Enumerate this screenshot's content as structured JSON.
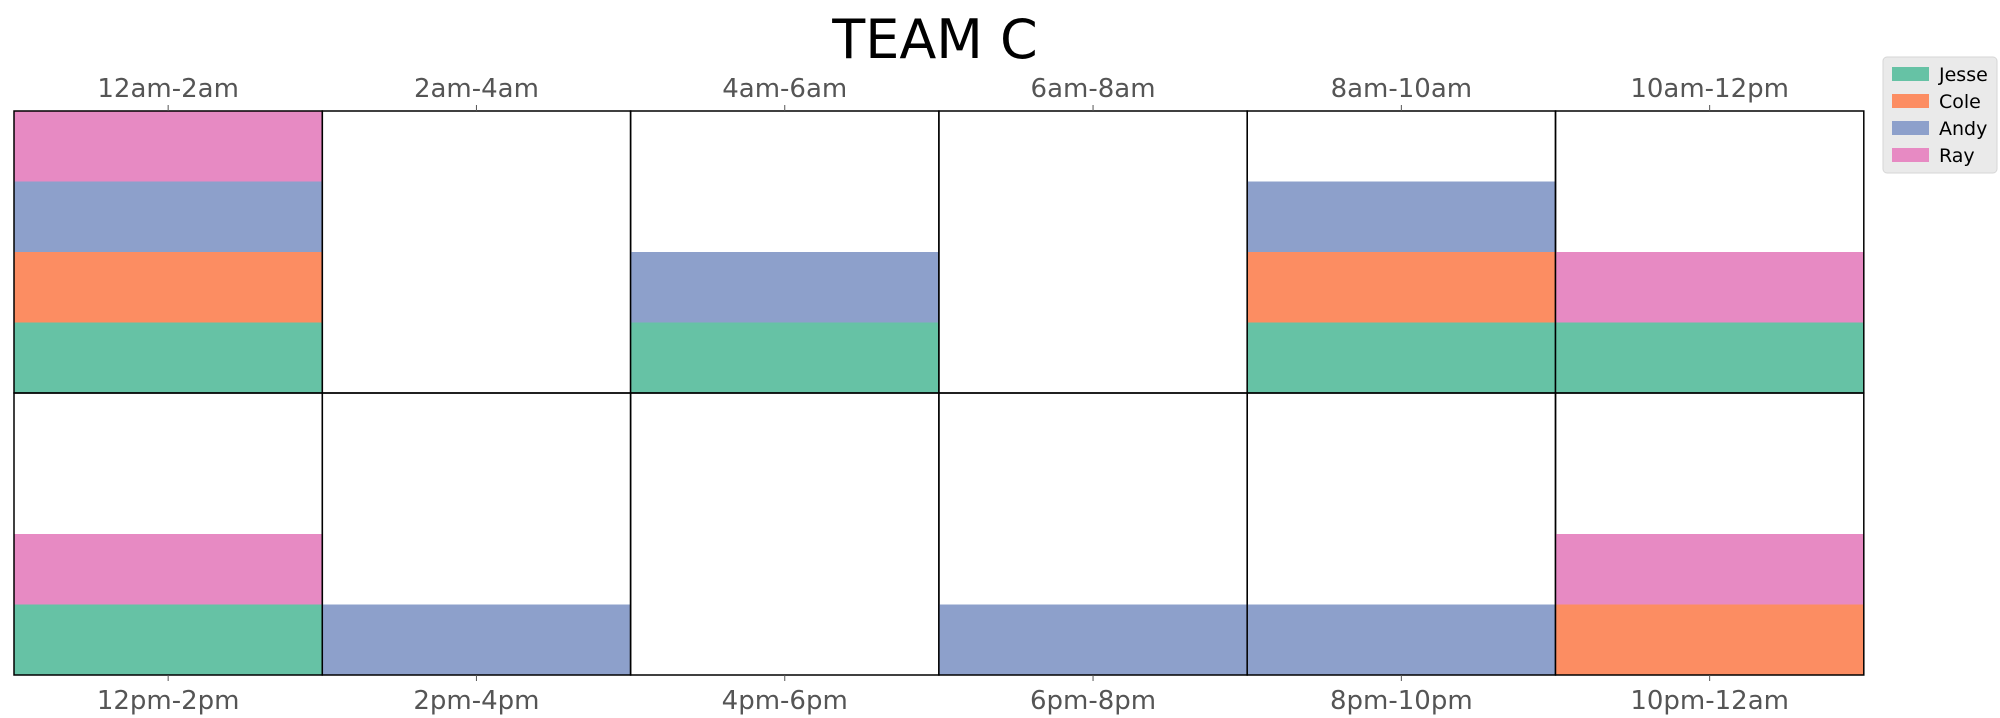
{
  "chart_data": {
    "type": "bar",
    "title": "TEAM C",
    "top_row_labels": [
      "12am-2am",
      "2am-4am",
      "4am-6am",
      "6am-8am",
      "8am-10am",
      "10am-12pm"
    ],
    "bottom_row_labels": [
      "12pm-2pm",
      "2pm-4pm",
      "4pm-6pm",
      "6pm-8pm",
      "8pm-10pm",
      "10pm-12am"
    ],
    "slots_per_cell": 4,
    "series": [
      {
        "name": "Jesse",
        "color": "#66c2a5"
      },
      {
        "name": "Cole",
        "color": "#fc8d62"
      },
      {
        "name": "Andy",
        "color": "#8da0cb"
      },
      {
        "name": "Ray",
        "color": "#e78ac3"
      }
    ],
    "top_row_stacks": [
      [
        "Jesse",
        "Cole",
        "Andy",
        "Ray"
      ],
      [],
      [
        "Jesse",
        "Andy"
      ],
      [],
      [
        "Jesse",
        "Cole",
        "Andy"
      ],
      [
        "Jesse",
        "Ray"
      ]
    ],
    "bottom_row_stacks": [
      [
        "Jesse",
        "Ray"
      ],
      [
        "Andy"
      ],
      [],
      [
        "Andy"
      ],
      [
        "Andy"
      ],
      [
        "Cole",
        "Ray"
      ]
    ],
    "legend_position": "top-right",
    "grid": false
  }
}
